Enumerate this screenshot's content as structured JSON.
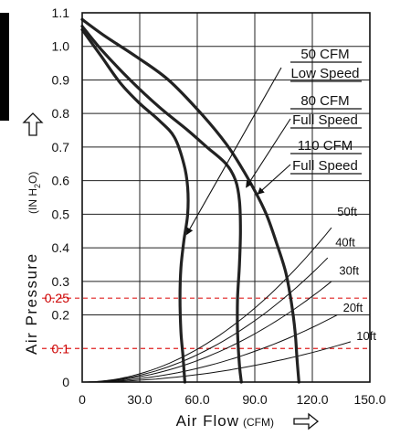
{
  "chart_data": {
    "type": "line",
    "xlabel": "Air Flow",
    "xlabel_unit": "(CFM)",
    "ylabel": "Air Pressure",
    "ylabel_unit_open": "(IN H",
    "ylabel_unit_sub": "2",
    "ylabel_unit_close": "O)",
    "xlim": [
      0,
      150
    ],
    "ylim": [
      0,
      1.1
    ],
    "grid": true,
    "x_ticks": [
      {
        "value": 0,
        "label": "0"
      },
      {
        "value": 30,
        "label": "30.0"
      },
      {
        "value": 60,
        "label": "60.0"
      },
      {
        "value": 90,
        "label": "90.0"
      },
      {
        "value": 120,
        "label": "120.0"
      },
      {
        "value": 150,
        "label": "150.0"
      }
    ],
    "y_ticks": [
      {
        "value": 0,
        "label": "0"
      },
      {
        "value": 0.1,
        "label": "0.1",
        "color": "#cc0000"
      },
      {
        "value": 0.2,
        "label": "0.2"
      },
      {
        "value": 0.25,
        "label": "0.25",
        "color": "#cc0000"
      },
      {
        "value": 0.3,
        "label": "0.3"
      },
      {
        "value": 0.4,
        "label": "0.4"
      },
      {
        "value": 0.5,
        "label": "0.5"
      },
      {
        "value": 0.6,
        "label": "0.6"
      },
      {
        "value": 0.7,
        "label": "0.7"
      },
      {
        "value": 0.8,
        "label": "0.8"
      },
      {
        "value": 0.9,
        "label": "0.9"
      },
      {
        "value": 1.0,
        "label": "1.0"
      },
      {
        "value": 1.1,
        "label": "1.1"
      }
    ],
    "reference_lines": [
      {
        "y": 0.25,
        "color": "#e02020",
        "style": "dashed"
      },
      {
        "y": 0.1,
        "color": "#e02020",
        "style": "dashed"
      }
    ],
    "series": [
      {
        "name_line1": "50 CFM",
        "name_line2": "Low Speed",
        "points": [
          [
            0,
            1.05
          ],
          [
            10,
            0.97
          ],
          [
            20,
            0.89
          ],
          [
            30,
            0.83
          ],
          [
            40,
            0.78
          ],
          [
            48,
            0.73
          ],
          [
            53,
            0.65
          ],
          [
            55,
            0.58
          ],
          [
            55,
            0.5
          ],
          [
            53,
            0.42
          ],
          [
            51.5,
            0.34
          ],
          [
            51,
            0.25
          ],
          [
            51.5,
            0.15
          ],
          [
            52.5,
            0.08
          ],
          [
            53.5,
            0
          ]
        ],
        "arrow_tip": [
          54.5,
          0.44
        ]
      },
      {
        "name_line1": "80 CFM",
        "name_line2": "Full Speed",
        "points": [
          [
            0,
            1.06
          ],
          [
            10,
            0.99
          ],
          [
            25,
            0.9
          ],
          [
            40,
            0.82
          ],
          [
            55,
            0.75
          ],
          [
            65,
            0.7
          ],
          [
            75,
            0.65
          ],
          [
            80,
            0.6
          ],
          [
            82,
            0.54
          ],
          [
            82.5,
            0.45
          ],
          [
            82,
            0.35
          ],
          [
            81,
            0.25
          ],
          [
            81,
            0.15
          ],
          [
            82,
            0.05
          ],
          [
            83,
            0
          ]
        ],
        "arrow_tip": [
          85.5,
          0.58
        ]
      },
      {
        "name_line1": "110 CFM",
        "name_line2": "Full Speed",
        "points": [
          [
            0,
            1.08
          ],
          [
            12,
            1.03
          ],
          [
            28,
            0.97
          ],
          [
            45,
            0.9
          ],
          [
            62,
            0.8
          ],
          [
            75,
            0.71
          ],
          [
            83,
            0.64
          ],
          [
            90,
            0.57
          ],
          [
            96,
            0.5
          ],
          [
            101,
            0.42
          ],
          [
            106,
            0.33
          ],
          [
            109,
            0.24
          ],
          [
            111,
            0.15
          ],
          [
            112,
            0.07
          ],
          [
            113,
            0
          ]
        ],
        "arrow_tip": [
          91.5,
          0.56
        ]
      }
    ],
    "system_curves": [
      {
        "label": "50ft",
        "end": [
          130,
          0.46
        ],
        "label_at": [
          133,
          0.495
        ]
      },
      {
        "label": "40ft",
        "end": [
          128,
          0.37
        ],
        "label_at": [
          132,
          0.405
        ]
      },
      {
        "label": "30ft",
        "end": [
          130,
          0.3
        ],
        "label_at": [
          134,
          0.32
        ]
      },
      {
        "label": "20ft",
        "end": [
          133,
          0.2
        ],
        "label_at": [
          136,
          0.21
        ]
      },
      {
        "label": "10ft",
        "end": [
          140,
          0.12
        ],
        "label_at": [
          143,
          0.125
        ]
      }
    ]
  }
}
